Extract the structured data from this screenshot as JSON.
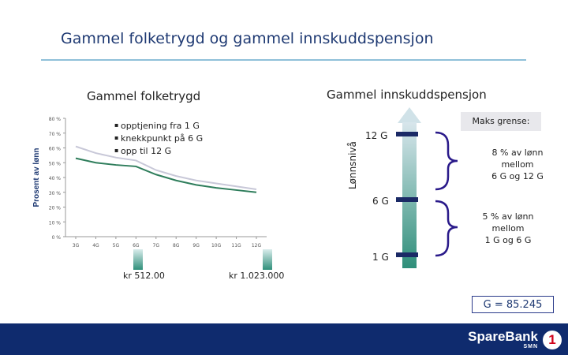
{
  "slide": {
    "title": "Gammel folketrygd og gammel innskuddspensjon"
  },
  "left": {
    "heading": "Gammel folketrygd",
    "bullets": [
      "opptjening fra 1 G",
      "knekkpunkt på 6 G",
      "opp til 12 G"
    ],
    "marker_low": "kr 512.00",
    "marker_high": "kr 1.023.000"
  },
  "chart_data": {
    "type": "line",
    "ylabel": "Prosent av lønn",
    "ylim": [
      0,
      80
    ],
    "yticks": [
      "0 %",
      "10 %",
      "20 %",
      "30 %",
      "40 %",
      "50 %",
      "60 %",
      "70 %",
      "80 %"
    ],
    "categories": [
      "3G",
      "4G",
      "5G",
      "6G",
      "7G",
      "8G",
      "9G",
      "10G",
      "11G",
      "12G"
    ],
    "colors": [
      "#c8c8d8",
      "#2e7d5b"
    ],
    "series": [
      {
        "values": [
          61,
          56.5,
          53.5,
          51.5,
          45,
          41,
          38,
          36,
          34,
          32
        ]
      },
      {
        "values": [
          53,
          50,
          48.5,
          47.5,
          42,
          38,
          35,
          33,
          31.5,
          30
        ]
      }
    ]
  },
  "right": {
    "heading": "Gammel innskuddspensjon",
    "axis_label": "Lønnsnivå",
    "level_12g": "12 G",
    "level_6g": "6 G",
    "level_1g": "1 G",
    "max_label": "Maks grense:",
    "upper_rule": [
      "8 % av lønn",
      "mellom",
      "6 G og 12 G"
    ],
    "lower_rule": [
      "5 % av lønn",
      "mellom",
      "1 G og 6 G"
    ],
    "g_value": "G = 85.245"
  },
  "footer": {
    "brand": "SpareBank",
    "sub": "SMN",
    "badge": "1",
    "color": "#0f2b6e"
  }
}
